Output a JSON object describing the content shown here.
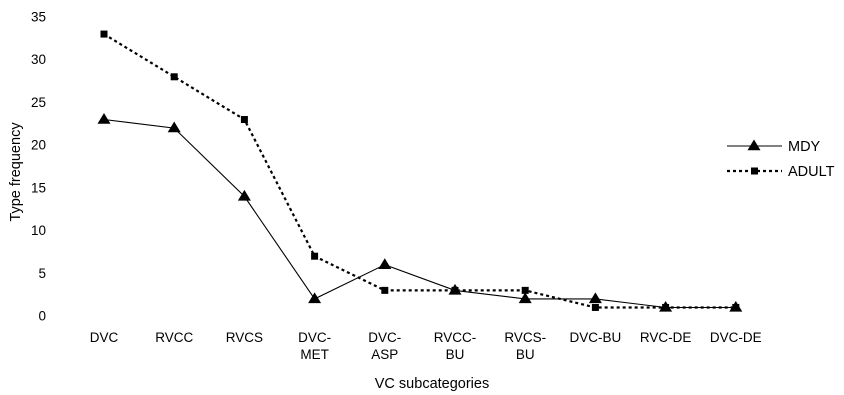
{
  "chart_data": {
    "type": "line",
    "xlabel": "VC subcategories",
    "ylabel": "Type frequency",
    "ylim": [
      0,
      35
    ],
    "yticks": [
      "0",
      "5",
      "10",
      "15",
      "20",
      "25",
      "30",
      "35"
    ],
    "categories": [
      [
        "DVC"
      ],
      [
        "RVCC"
      ],
      [
        "RVCS"
      ],
      [
        "DVC-",
        "MET"
      ],
      [
        "DVC-",
        "ASP"
      ],
      [
        "RVCC-",
        "BU"
      ],
      [
        "RVCS-",
        "BU"
      ],
      [
        "DVC-BU"
      ],
      [
        "RVC-DE"
      ],
      [
        "DVC-DE"
      ]
    ],
    "series": [
      {
        "name": "MDY",
        "style": "solid",
        "marker": "triangle",
        "color": "#000000",
        "values": [
          23,
          22,
          14,
          2,
          6,
          3,
          2,
          2,
          1,
          1
        ]
      },
      {
        "name": "ADULT",
        "style": "dotted",
        "marker": "square",
        "color": "#000000",
        "values": [
          33,
          28,
          23,
          7,
          3,
          3,
          3,
          1,
          1,
          1
        ]
      }
    ],
    "grid": false,
    "legend_position": "right"
  }
}
